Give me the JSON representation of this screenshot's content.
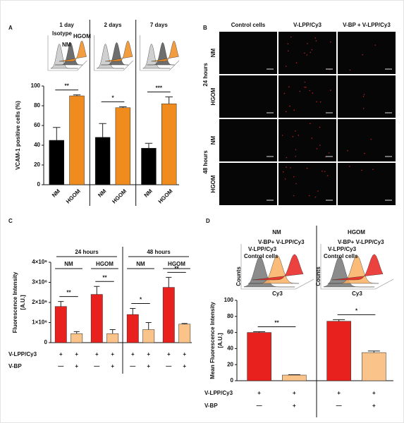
{
  "chart_data": [
    {
      "type": "bar",
      "panel_label": "A",
      "ylabel": "VCAM-1 positive cells (%)",
      "ylim": [
        0,
        100
      ],
      "yticks": [
        0,
        20,
        40,
        60,
        80,
        100
      ],
      "colors": [
        "#000000",
        "#f08c1e"
      ],
      "inset_labels": [
        "Isotype",
        "NM",
        "HGOM"
      ],
      "panels": [
        {
          "title": "1 day",
          "categories": [
            "NM",
            "HGOM"
          ],
          "values": [
            45,
            90
          ],
          "errors": [
            13,
            1
          ],
          "significance": "**"
        },
        {
          "title": "2 days",
          "categories": [
            "NM",
            "HGOM"
          ],
          "values": [
            48,
            78
          ],
          "errors": [
            14,
            1
          ],
          "significance": "*"
        },
        {
          "title": "7 days",
          "categories": [
            "NM",
            "HGOM"
          ],
          "values": [
            37,
            82
          ],
          "errors": [
            5,
            7
          ],
          "significance": "***"
        }
      ]
    },
    {
      "type": "bar",
      "panel_label": "C",
      "ylabel": [
        "Fluorescence Intensity",
        "[A.U.]"
      ],
      "ylim": [
        0,
        4000000
      ],
      "yticks": [
        0,
        {
          "value": 1000000,
          "label": "1×10⁶"
        },
        {
          "value": 2000000,
          "label": "2×10⁶"
        },
        {
          "value": 3000000,
          "label": "3×10⁶"
        },
        {
          "value": 4000000,
          "label": "4×10⁶"
        }
      ],
      "colors": [
        "#e8211e",
        "#f9c38a"
      ],
      "panels": [
        {
          "title": "24 hours",
          "groups": [
            {
              "label": "NM",
              "values": [
                1800000,
                450000
              ],
              "errors": [
                250000,
                100000
              ],
              "significance": "**"
            },
            {
              "label": "HGOM",
              "values": [
                2400000,
                450000
              ],
              "errors": [
                400000,
                200000
              ],
              "significance": "**"
            }
          ]
        },
        {
          "title": "48 hours",
          "groups": [
            {
              "label": "NM",
              "values": [
                1400000,
                650000
              ],
              "errors": [
                300000,
                350000
              ],
              "significance": "*"
            },
            {
              "label": "HGOM",
              "values": [
                2750000,
                920000
              ],
              "errors": [
                500000,
                30000
              ],
              "significance": "**"
            }
          ]
        }
      ],
      "conditions": [
        {
          "label": "V-LPP/Cy3",
          "marks": [
            "+",
            "+",
            "+",
            "+",
            "+",
            "+",
            "+",
            "+"
          ]
        },
        {
          "label": "V-BP",
          "marks": [
            "—",
            "+",
            "—",
            "+",
            "—",
            "+",
            "—",
            "+"
          ]
        }
      ]
    },
    {
      "type": "bar",
      "panel_label": "D",
      "ylabel": [
        "Mean Fluorescence Intensity",
        "[A.U.]"
      ],
      "ylim": [
        0,
        100
      ],
      "yticks": [
        0,
        20,
        40,
        60,
        80,
        100
      ],
      "colors": [
        "#e8211e",
        "#f9c38a"
      ],
      "panels": [
        {
          "title": "NM",
          "inset_labels": [
            "V-BP+ V-LPP/Cy3",
            "V-LPP/Cy3",
            "Control cells"
          ],
          "inset_ylabel": "Counts",
          "inset_xlabel": "Cy3",
          "values": [
            60,
            7
          ],
          "errors": [
            1,
            0.5
          ],
          "significance": "**"
        },
        {
          "title": "HGOM",
          "inset_labels": [
            "V-BP+ V-LPP/Cy3",
            "V-LPP/Cy3",
            "Control cells"
          ],
          "inset_ylabel": "Counts",
          "inset_xlabel": "Cy3",
          "values": [
            74,
            35
          ],
          "errors": [
            2,
            2
          ],
          "significance": "*"
        }
      ],
      "conditions": [
        {
          "label": "V-LPP/Cy3",
          "marks": [
            "+",
            "+",
            "+",
            "+"
          ]
        },
        {
          "label": "V-BP",
          "marks": [
            "—",
            "+",
            "—",
            "+"
          ]
        }
      ]
    }
  ],
  "image_grid": {
    "panel_label": "B",
    "columns": [
      "Control cells",
      "V-LPP/Cy3",
      "V-BP + V-LPP/Cy3"
    ],
    "row_groups": [
      {
        "label": "24 hours",
        "rows": [
          "NM",
          "HGOM"
        ]
      },
      {
        "label": "48 hours",
        "rows": [
          "NM",
          "HGOM"
        ]
      }
    ]
  }
}
